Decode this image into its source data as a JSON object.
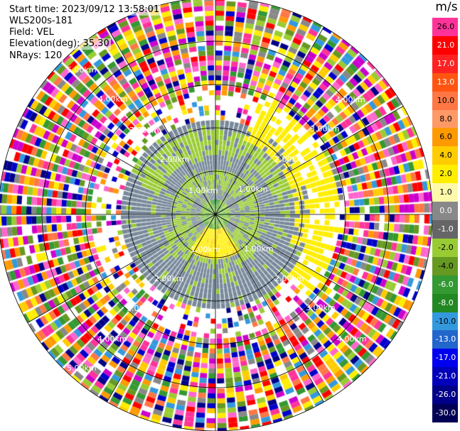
{
  "info": {
    "start_time": "Start time: 2023/09/12 13:58:01",
    "instrument": "WLS200s-181",
    "field": "Field: VEL",
    "elevation": "Elevation(deg): 35.30",
    "nrays": "NRays: 120"
  },
  "colorbar": {
    "unit": "m/s",
    "levels": [
      {
        "label": "26.0",
        "color": "#ff3399"
      },
      {
        "label": "21.0",
        "color": "#ff0000"
      },
      {
        "label": "17.0",
        "color": "#ff2222"
      },
      {
        "label": "13.0",
        "color": "#ff5511"
      },
      {
        "label": "10.0",
        "color": "#ff7744"
      },
      {
        "label": "8.0",
        "color": "#ff9966"
      },
      {
        "label": "6.0",
        "color": "#ff9900"
      },
      {
        "label": "4.0",
        "color": "#ffcc00"
      },
      {
        "label": "2.0",
        "color": "#ffee00"
      },
      {
        "label": "1.0",
        "color": "#fffaaa"
      },
      {
        "label": "0.0",
        "color": "#888888"
      },
      {
        "label": "-1.0",
        "color": "#666666"
      },
      {
        "label": "-2.0",
        "color": "#99cc33"
      },
      {
        "label": "-4.0",
        "color": "#669922"
      },
      {
        "label": "-6.0",
        "color": "#339933"
      },
      {
        "label": "-8.0",
        "color": "#228822"
      },
      {
        "label": "-10.0",
        "color": "#3399dd"
      },
      {
        "label": "-13.0",
        "color": "#2266cc"
      },
      {
        "label": "-17.0",
        "color": "#0000ee"
      },
      {
        "label": "-21.0",
        "color": "#0000bb"
      },
      {
        "label": "-26.0",
        "color": "#000088"
      },
      {
        "label": "-30.0",
        "color": "#000055"
      }
    ]
  },
  "range_labels": {
    "r1": "1.00km",
    "r2": "2.00km",
    "r3": "3.00km",
    "r4": "4.00km",
    "r5": "5.00km"
  },
  "palette": {
    "yellow": "#ffee00",
    "green": "#99cc33",
    "gray": "#778899",
    "grid": "#000000",
    "noise": [
      "#ff3399",
      "#ffee00",
      "#ff0000",
      "#ffcc00",
      "#99cc33",
      "#ff9900",
      "#0000cc",
      "#339933",
      "#ff66cc",
      "#000088",
      "#3399dd",
      "#888888",
      "#ff7744",
      "#ffffff",
      "#669922",
      "#cc00cc"
    ]
  }
}
